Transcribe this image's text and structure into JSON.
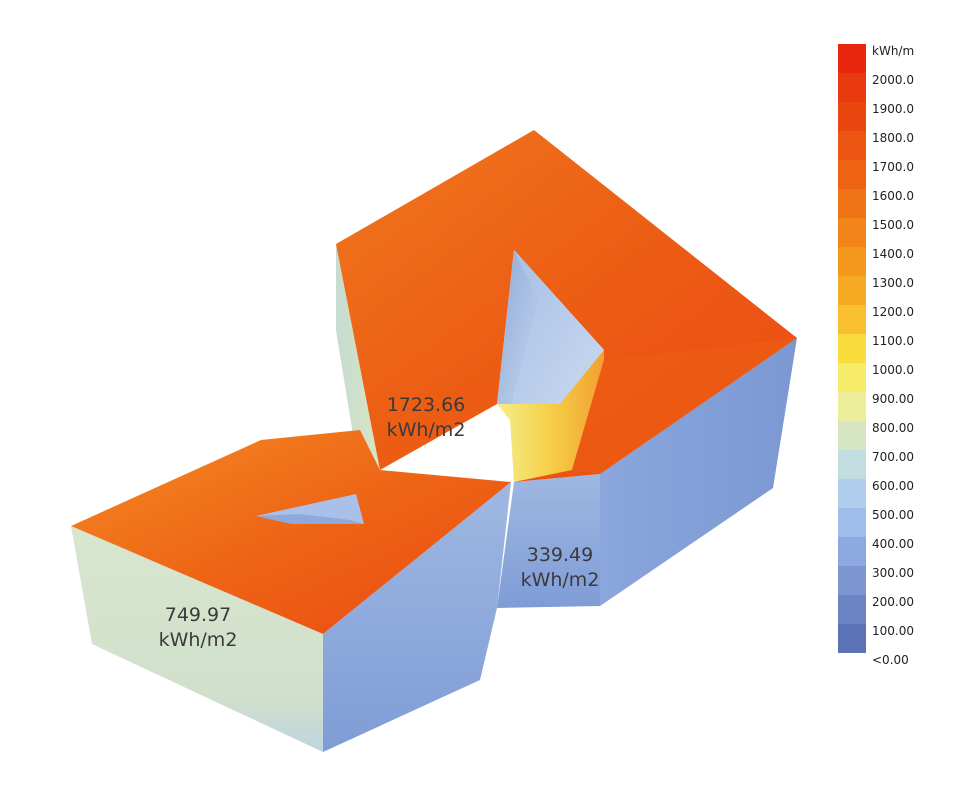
{
  "legend": {
    "unit": "kWh/m",
    "ticks": [
      "2000.0",
      "1900.0",
      "1800.0",
      "1700.0",
      "1600.0",
      "1500.0",
      "1400.0",
      "1300.0",
      "1200.0",
      "1100.0",
      "1000.0",
      "900.00",
      "800.00",
      "700.00",
      "600.00",
      "500.00",
      "400.00",
      "300.00",
      "200.00",
      "100.00",
      "<0.00"
    ],
    "colors": [
      "#e8260e",
      "#e9390f",
      "#ea4710",
      "#ec5512",
      "#ee6414",
      "#f07416",
      "#f28519",
      "#f4971d",
      "#f6aa24",
      "#f8c02e",
      "#fadc3e",
      "#f7eb6a",
      "#ecee9c",
      "#d6e6c2",
      "#c2dde0",
      "#b0cdec",
      "#9ebdea",
      "#8ea9e0",
      "#7d96d2",
      "#6c84c4",
      "#5c72b6"
    ]
  },
  "values": {
    "left": {
      "value": "749.97",
      "unit": "kWh/m2"
    },
    "center": {
      "value": "1723.66",
      "unit": "kWh/m2"
    },
    "right": {
      "value": "339.49",
      "unit": "kWh/m2"
    }
  },
  "surface_colors": {
    "roof": "#ea4a12",
    "roof_warm": "#f07a20",
    "wall_green": "#d4e3cc",
    "wall_blue": "#8ea9dc",
    "wall_light": "#b7cdea",
    "courtyard_yellow": "#f6e06a"
  }
}
